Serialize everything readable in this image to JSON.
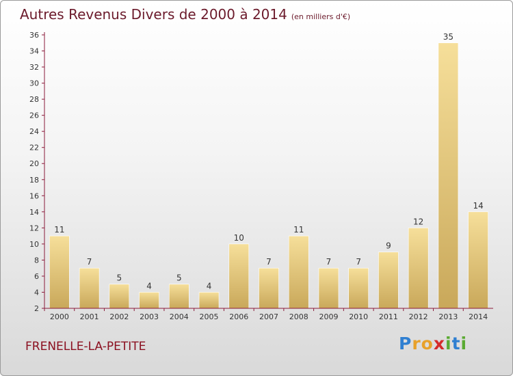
{
  "title": "Autres Revenus Divers de 2000 à 2014",
  "unit": "(en milliers d'€)",
  "location": "FRENELLE-LA-PETITE",
  "brand": {
    "letters": [
      "P",
      "r",
      "o",
      "x",
      "i",
      "t",
      "i"
    ],
    "colors": [
      "#2f7fd1",
      "#e8a12a",
      "#e8a12a",
      "#d42b2b",
      "#5aaa32",
      "#2f7fd1",
      "#5aaa32"
    ]
  },
  "colors": {
    "bar_light": "#f6df9a",
    "bar_dark": "#c9a85a",
    "axis": "#8b1a3a",
    "text": "#333333"
  },
  "chart_data": {
    "type": "bar",
    "categories": [
      "2000",
      "2001",
      "2002",
      "2003",
      "2004",
      "2005",
      "2006",
      "2007",
      "2008",
      "2009",
      "2010",
      "2011",
      "2012",
      "2013",
      "2014"
    ],
    "values": [
      11,
      7,
      5,
      4,
      5,
      4,
      10,
      7,
      11,
      7,
      7,
      9,
      12,
      35,
      14
    ],
    "ylim": [
      2,
      36
    ],
    "yticks": [
      2,
      4,
      6,
      8,
      10,
      12,
      14,
      16,
      18,
      20,
      22,
      24,
      26,
      28,
      30,
      32,
      34,
      36
    ],
    "grid": false,
    "legend": "none"
  }
}
